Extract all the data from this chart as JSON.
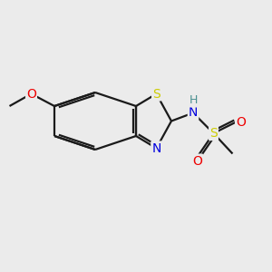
{
  "background_color": "#ebebeb",
  "bond_color": "#1a1a1a",
  "atom_colors": {
    "S_thz": "#cccc00",
    "S_sul": "#cccc00",
    "N": "#0000dd",
    "O": "#ee0000",
    "H": "#4a9090",
    "C": "#1a1a1a"
  },
  "figsize": [
    3.0,
    3.0
  ],
  "dpi": 100,
  "lw": 1.6,
  "lw_double": 1.4
}
